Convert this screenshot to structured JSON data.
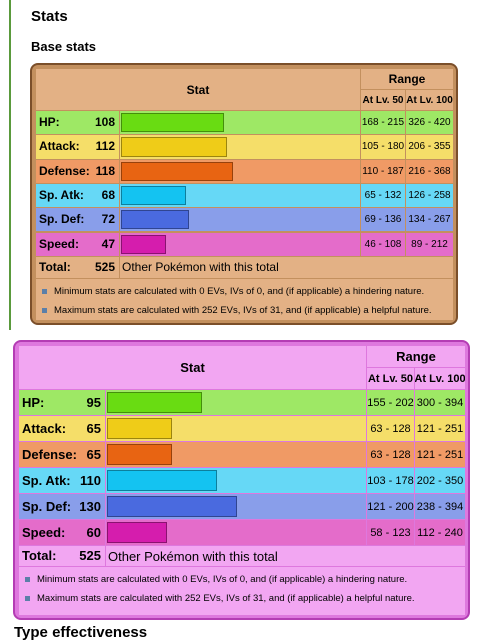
{
  "header": {
    "title": "Stats",
    "subtitle": "Base stats"
  },
  "tables": [
    {
      "columns": {
        "stat": "Stat",
        "range": "Range",
        "lv50": "At Lv. 50",
        "lv100": "At Lv. 100"
      },
      "rows": [
        {
          "label": "HP:",
          "value": 108,
          "lv50": "168 - 215",
          "lv100": "326 - 420"
        },
        {
          "label": "Attack:",
          "value": 112,
          "lv50": "105 - 180",
          "lv100": "206 - 355"
        },
        {
          "label": "Defense:",
          "value": 118,
          "lv50": "110 - 187",
          "lv100": "216 - 368"
        },
        {
          "label": "Sp. Atk:",
          "value": 68,
          "lv50": "65 - 132",
          "lv100": "126 - 258"
        },
        {
          "label": "Sp. Def:",
          "value": 72,
          "lv50": "69 - 136",
          "lv100": "134 - 267"
        },
        {
          "label": "Speed:",
          "value": 47,
          "lv50": "46 - 108",
          "lv100": "89 - 212"
        }
      ],
      "total": {
        "label": "Total:",
        "value": 525,
        "note": "Other Pokémon with this total"
      },
      "notes": [
        "Minimum stats are calculated with 0 EVs, IVs of 0, and (if applicable) a hindering nature.",
        "Maximum stats are calculated with 252 EVs, IVs of 31, and (if applicable) a helpful nature."
      ]
    },
    {
      "columns": {
        "stat": "Stat",
        "range": "Range",
        "lv50": "At Lv. 50",
        "lv100": "At Lv. 100"
      },
      "rows": [
        {
          "label": "HP:",
          "value": 95,
          "lv50": "155 - 202",
          "lv100": "300 - 394"
        },
        {
          "label": "Attack:",
          "value": 65,
          "lv50": "63 - 128",
          "lv100": "121 - 251"
        },
        {
          "label": "Defense:",
          "value": 65,
          "lv50": "63 - 128",
          "lv100": "121 - 251"
        },
        {
          "label": "Sp. Atk:",
          "value": 110,
          "lv50": "103 - 178",
          "lv100": "202 - 350"
        },
        {
          "label": "Sp. Def:",
          "value": 130,
          "lv50": "121 - 200",
          "lv100": "238 - 394"
        },
        {
          "label": "Speed:",
          "value": 60,
          "lv50": "58 - 123",
          "lv100": "112 - 240"
        }
      ],
      "total": {
        "label": "Total:",
        "value": 525,
        "note": "Other Pokémon with this total"
      },
      "notes": [
        "Minimum stats are calculated with 0 EVs, IVs of 0, and (if applicable) a hindering nature.",
        "Maximum stats are calculated with 252 EVs, IVs of 31, and (if applicable) a helpful nature."
      ]
    }
  ],
  "footer": "Type effectiveness"
}
